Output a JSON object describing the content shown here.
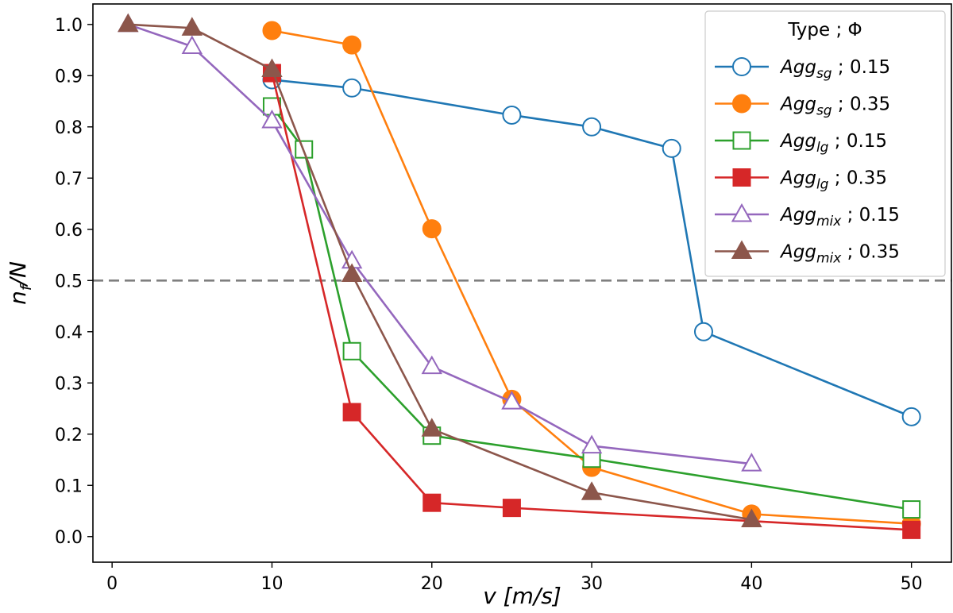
{
  "chart_data": {
    "type": "line",
    "title": "",
    "xlabel": "v [m/s]",
    "ylabel": "n_f/N",
    "xlim": [
      -1.2,
      52.5
    ],
    "ylim": [
      -0.05,
      1.04
    ],
    "xticks": [
      0,
      10,
      20,
      30,
      40,
      50
    ],
    "xtick_labels": [
      "0",
      "10",
      "20",
      "30",
      "40",
      "50"
    ],
    "yticks": [
      0.0,
      0.1,
      0.2,
      0.3,
      0.4,
      0.5,
      0.6,
      0.7,
      0.8,
      0.9,
      1.0
    ],
    "ytick_labels": [
      "0.0",
      "0.1",
      "0.2",
      "0.3",
      "0.4",
      "0.5",
      "0.6",
      "0.7",
      "0.8",
      "0.9",
      "1.0"
    ],
    "reference_line": {
      "y": 0.5,
      "style": "dashed",
      "color": "#7f7f7f"
    },
    "legend": {
      "title": "Type ; Φ",
      "position": "top-right"
    },
    "series": [
      {
        "name": "Agg_sg ; 0.15",
        "name_base": "Agg",
        "name_sub": "sg",
        "name_suffix": " ; 0.15",
        "color": "#1f77b4",
        "marker": "circle",
        "filled": false,
        "x": [
          10,
          15,
          25,
          30,
          35,
          37,
          50
        ],
        "y": [
          0.892,
          0.876,
          0.823,
          0.8,
          0.758,
          0.4,
          0.234
        ]
      },
      {
        "name": "Agg_sg ; 0.35",
        "name_base": "Agg",
        "name_sub": "sg",
        "name_suffix": " ; 0.35",
        "color": "#ff7f0e",
        "marker": "circle",
        "filled": true,
        "x": [
          10,
          15,
          20,
          25,
          30,
          40,
          50
        ],
        "y": [
          0.988,
          0.96,
          0.601,
          0.268,
          0.135,
          0.044,
          0.025
        ]
      },
      {
        "name": "Agg_lg ; 0.15",
        "name_base": "Agg",
        "name_sub": "lg",
        "name_suffix": " ; 0.15",
        "color": "#2ca02c",
        "marker": "square",
        "filled": false,
        "x": [
          10,
          12,
          15,
          20,
          30,
          50
        ],
        "y": [
          0.84,
          0.756,
          0.362,
          0.197,
          0.152,
          0.053
        ]
      },
      {
        "name": "Agg_lg ; 0.35",
        "name_base": "Agg",
        "name_sub": "lg",
        "name_suffix": " ; 0.35",
        "color": "#d62728",
        "marker": "square",
        "filled": true,
        "x": [
          10,
          15,
          20,
          25,
          50
        ],
        "y": [
          0.905,
          0.243,
          0.066,
          0.056,
          0.013
        ]
      },
      {
        "name": "Agg_mix ; 0.15",
        "name_base": "Agg",
        "name_sub": "mix",
        "name_suffix": " ; 0.15",
        "color": "#9467bd",
        "marker": "triangle",
        "filled": false,
        "x": [
          1,
          5,
          10,
          15,
          20,
          25,
          30,
          40
        ],
        "y": [
          1.0,
          0.957,
          0.812,
          0.538,
          0.332,
          0.263,
          0.177,
          0.142
        ]
      },
      {
        "name": "Agg_mix ; 0.35",
        "name_base": "Agg",
        "name_sub": "mix",
        "name_suffix": " ; 0.35",
        "color": "#8c564b",
        "marker": "triangle",
        "filled": true,
        "x": [
          1,
          5,
          10,
          15,
          20,
          30,
          40
        ],
        "y": [
          1.0,
          0.993,
          0.912,
          0.512,
          0.21,
          0.086,
          0.033
        ]
      }
    ]
  }
}
